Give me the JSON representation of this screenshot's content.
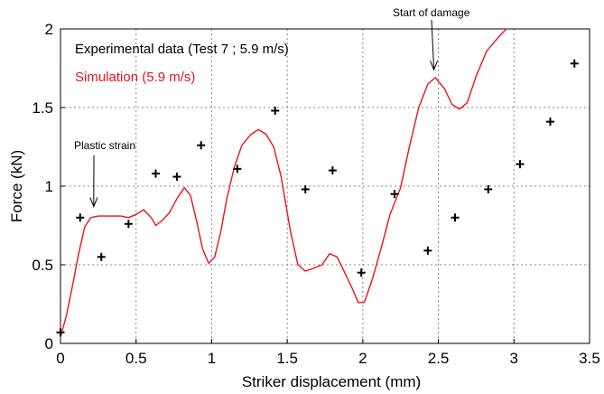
{
  "chart_data": {
    "type": "line",
    "xlabel": "Striker displacement (mm)",
    "ylabel": "Force (kN)",
    "xlim": [
      0,
      3.5
    ],
    "ylim": [
      0,
      2
    ],
    "x_ticks": [
      "0",
      "0.5",
      "1",
      "1.5",
      "2",
      "2.5",
      "3",
      "3.5"
    ],
    "y_ticks": [
      "0",
      "0.5",
      "1",
      "1.5",
      "2"
    ],
    "grid": true,
    "legend_position": "top-left",
    "series": [
      {
        "name": "Experimental data (Test 7 ; 5.9 m/s)",
        "kind": "scatter",
        "marker": "plus",
        "color": "#000000",
        "points": [
          [
            0.0,
            0.07
          ],
          [
            0.13,
            0.8
          ],
          [
            0.27,
            0.55
          ],
          [
            0.45,
            0.76
          ],
          [
            0.63,
            1.08
          ],
          [
            0.77,
            1.06
          ],
          [
            0.93,
            1.26
          ],
          [
            1.17,
            1.11
          ],
          [
            1.42,
            1.48
          ],
          [
            1.62,
            0.98
          ],
          [
            1.8,
            1.1
          ],
          [
            1.99,
            0.45
          ],
          [
            2.21,
            0.95
          ],
          [
            2.43,
            0.59
          ],
          [
            2.61,
            0.8
          ],
          [
            2.83,
            0.98
          ],
          [
            3.04,
            1.14
          ],
          [
            3.24,
            1.41
          ],
          [
            3.4,
            1.78
          ]
        ]
      },
      {
        "name": "Simulation (5.9 m/s)",
        "kind": "line",
        "color": "#e8141c",
        "points": [
          [
            0.0,
            0.04
          ],
          [
            0.04,
            0.18
          ],
          [
            0.08,
            0.37
          ],
          [
            0.12,
            0.57
          ],
          [
            0.16,
            0.74
          ],
          [
            0.2,
            0.8
          ],
          [
            0.25,
            0.81
          ],
          [
            0.3,
            0.81
          ],
          [
            0.35,
            0.81
          ],
          [
            0.4,
            0.81
          ],
          [
            0.45,
            0.8
          ],
          [
            0.5,
            0.82
          ],
          [
            0.55,
            0.85
          ],
          [
            0.6,
            0.8
          ],
          [
            0.63,
            0.75
          ],
          [
            0.67,
            0.78
          ],
          [
            0.72,
            0.83
          ],
          [
            0.77,
            0.92
          ],
          [
            0.82,
            0.99
          ],
          [
            0.86,
            0.94
          ],
          [
            0.9,
            0.78
          ],
          [
            0.94,
            0.6
          ],
          [
            0.98,
            0.51
          ],
          [
            1.02,
            0.55
          ],
          [
            1.06,
            0.71
          ],
          [
            1.1,
            0.92
          ],
          [
            1.15,
            1.12
          ],
          [
            1.2,
            1.26
          ],
          [
            1.26,
            1.33
          ],
          [
            1.31,
            1.36
          ],
          [
            1.36,
            1.33
          ],
          [
            1.41,
            1.25
          ],
          [
            1.46,
            1.06
          ],
          [
            1.52,
            0.72
          ],
          [
            1.57,
            0.5
          ],
          [
            1.62,
            0.46
          ],
          [
            1.68,
            0.48
          ],
          [
            1.73,
            0.5
          ],
          [
            1.78,
            0.57
          ],
          [
            1.83,
            0.55
          ],
          [
            1.88,
            0.45
          ],
          [
            1.93,
            0.35
          ],
          [
            1.97,
            0.26
          ],
          [
            2.01,
            0.26
          ],
          [
            2.06,
            0.4
          ],
          [
            2.12,
            0.6
          ],
          [
            2.18,
            0.82
          ],
          [
            2.25,
            0.99
          ],
          [
            2.31,
            1.26
          ],
          [
            2.37,
            1.5
          ],
          [
            2.43,
            1.65
          ],
          [
            2.48,
            1.69
          ],
          [
            2.54,
            1.62
          ],
          [
            2.59,
            1.52
          ],
          [
            2.64,
            1.49
          ],
          [
            2.69,
            1.53
          ],
          [
            2.75,
            1.7
          ],
          [
            2.82,
            1.86
          ],
          [
            2.9,
            1.95
          ],
          [
            2.95,
            2.0
          ]
        ]
      }
    ],
    "annotations": [
      {
        "text": "Plastic strain",
        "arrow_to": [
          0.22,
          0.87
        ]
      },
      {
        "text": "Start of damage",
        "arrow_to": [
          2.47,
          1.74
        ]
      }
    ]
  }
}
